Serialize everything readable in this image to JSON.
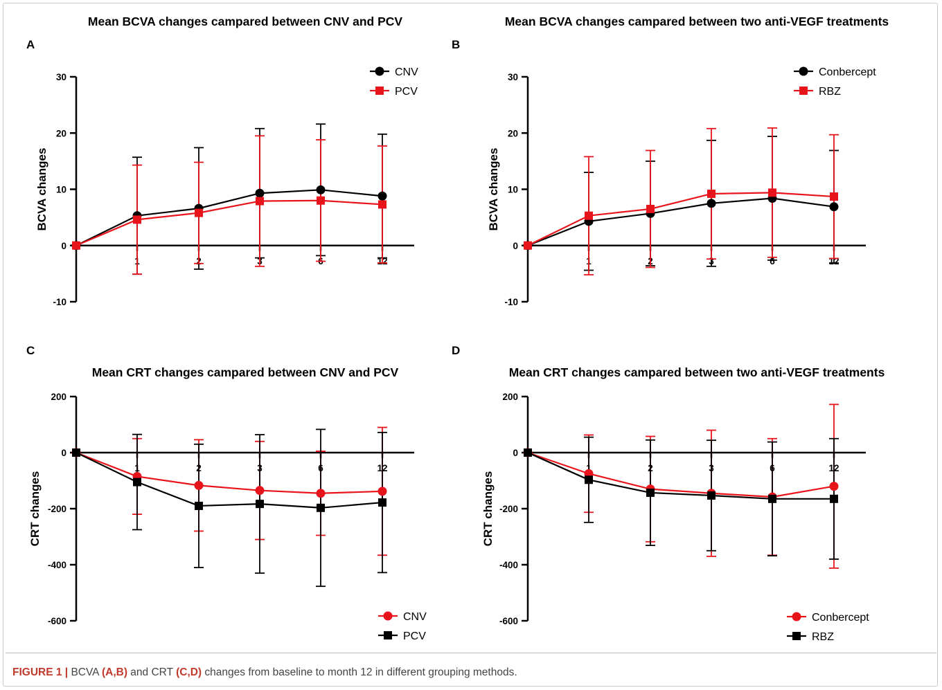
{
  "caption": {
    "figure_label": "FIGURE 1 |",
    "part1": " BCVA ",
    "ab": "(A,B)",
    "part2": " and CRT ",
    "cd": "(C,D)",
    "part3": " changes from baseline to month 12 in different grouping methods."
  },
  "colors": {
    "black": "#000000",
    "red": "#e8141c"
  },
  "chart_data": [
    {
      "panel": "A",
      "type": "line",
      "title": "Mean BCVA changes campared between CNV and PCV",
      "xlabel": "",
      "ylabel": "BCVA changes",
      "categories": [
        "",
        "1",
        "2",
        "3",
        "6",
        "12"
      ],
      "ylim": [
        -10,
        30
      ],
      "yticks": [
        -10,
        0,
        10,
        20,
        30
      ],
      "grid": false,
      "legend_position": "top-right",
      "series": [
        {
          "name": "CNV",
          "color": "#000000",
          "marker": "circle",
          "values": [
            0,
            5.3,
            6.6,
            9.3,
            9.9,
            8.8
          ],
          "err": [
            0,
            10.4,
            10.8,
            11.5,
            11.7,
            11.0
          ]
        },
        {
          "name": "PCV",
          "color": "#e8141c",
          "marker": "square",
          "values": [
            0,
            4.6,
            5.8,
            7.9,
            8.0,
            7.3
          ],
          "err": [
            0,
            9.7,
            9.0,
            11.6,
            10.8,
            10.4
          ]
        }
      ]
    },
    {
      "panel": "B",
      "type": "line",
      "title": "Mean BCVA changes campared between two anti-VEGF treatments",
      "xlabel": "",
      "ylabel": "BCVA changes",
      "categories": [
        "",
        "1",
        "2",
        "3",
        "6",
        "12"
      ],
      "ylim": [
        -10,
        30
      ],
      "yticks": [
        -10,
        0,
        10,
        20,
        30
      ],
      "grid": false,
      "legend_position": "top-right",
      "series": [
        {
          "name": "Conbercept",
          "color": "#000000",
          "marker": "circle",
          "values": [
            0,
            4.3,
            5.7,
            7.5,
            8.4,
            6.9
          ],
          "err": [
            0,
            8.7,
            9.3,
            11.2,
            11.0,
            10.0
          ]
        },
        {
          "name": "RBZ",
          "color": "#e8141c",
          "marker": "square",
          "values": [
            0,
            5.3,
            6.5,
            9.2,
            9.4,
            8.7
          ],
          "err": [
            0,
            10.5,
            10.4,
            11.6,
            11.5,
            11.0
          ]
        }
      ]
    },
    {
      "panel": "C",
      "type": "line",
      "title": "Mean CRT changes campared between CNV and PCV",
      "xlabel": "",
      "ylabel": "CRT changes",
      "categories": [
        "",
        "1",
        "2",
        "3",
        "6",
        "12"
      ],
      "ylim": [
        -600,
        200
      ],
      "yticks": [
        -600,
        -400,
        -200,
        0,
        200
      ],
      "grid": false,
      "legend_position": "bottom-right",
      "series": [
        {
          "name": "CNV",
          "color": "#e8141c",
          "marker": "circle",
          "values": [
            0,
            -85,
            -117,
            -135,
            -145,
            -138
          ],
          "err": [
            0,
            135,
            163,
            175,
            150,
            228
          ]
        },
        {
          "name": "PCV",
          "color": "#000000",
          "marker": "square",
          "values": [
            0,
            -105,
            -190,
            -183,
            -197,
            -178
          ],
          "err": [
            0,
            170,
            220,
            247,
            280,
            250
          ]
        }
      ]
    },
    {
      "panel": "D",
      "type": "line",
      "title": "Mean CRT changes campared between two anti-VEGF treatments",
      "xlabel": "",
      "ylabel": "CRT changes",
      "categories": [
        "",
        "1",
        "2",
        "3",
        "6",
        "12"
      ],
      "ylim": [
        -600,
        200
      ],
      "yticks": [
        -600,
        -400,
        -200,
        0,
        200
      ],
      "grid": false,
      "legend_position": "bottom-right",
      "series": [
        {
          "name": "Conbercept",
          "color": "#e8141c",
          "marker": "circle",
          "values": [
            0,
            -75,
            -130,
            -145,
            -158,
            -120
          ],
          "err": [
            0,
            138,
            188,
            225,
            208,
            292
          ]
        },
        {
          "name": "RBZ",
          "color": "#000000",
          "marker": "square",
          "values": [
            0,
            -97,
            -143,
            -153,
            -165,
            -165
          ],
          "err": [
            0,
            152,
            188,
            197,
            203,
            215
          ]
        }
      ]
    }
  ]
}
